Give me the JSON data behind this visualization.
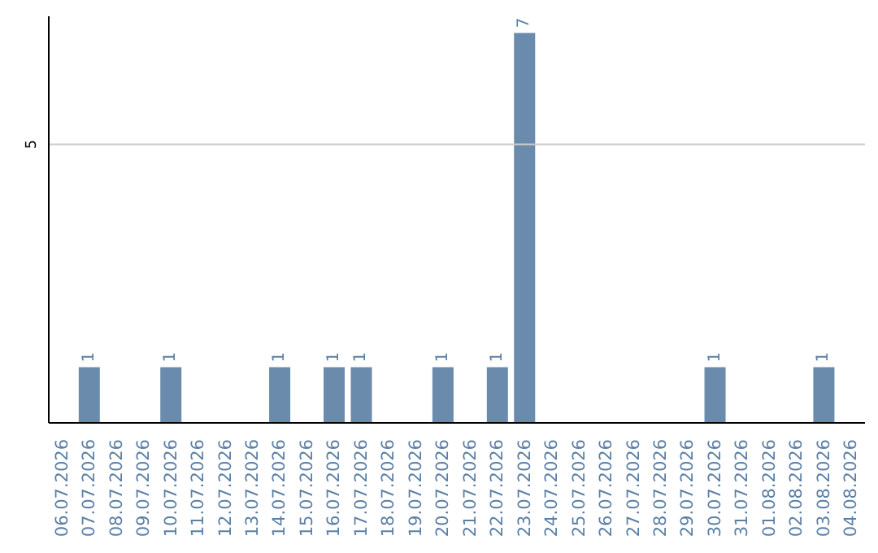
{
  "chart_data": {
    "type": "bar",
    "categories": [
      "06.07.2026",
      "07.07.2026",
      "08.07.2026",
      "09.07.2026",
      "10.07.2026",
      "11.07.2026",
      "12.07.2026",
      "13.07.2026",
      "14.07.2026",
      "15.07.2026",
      "16.07.2026",
      "17.07.2026",
      "18.07.2026",
      "19.07.2026",
      "20.07.2026",
      "21.07.2026",
      "22.07.2026",
      "23.07.2026",
      "24.07.2026",
      "25.07.2026",
      "26.07.2026",
      "27.07.2026",
      "28.07.2026",
      "29.07.2026",
      "30.07.2026",
      "31.07.2026",
      "01.08.2026",
      "02.08.2026",
      "03.08.2026",
      "04.08.2026"
    ],
    "values": [
      0,
      1,
      0,
      0,
      1,
      0,
      0,
      0,
      1,
      0,
      1,
      1,
      0,
      0,
      1,
      0,
      1,
      7,
      0,
      0,
      0,
      0,
      0,
      0,
      1,
      0,
      0,
      0,
      1,
      0
    ],
    "value_labels": [
      null,
      "1",
      null,
      null,
      "1",
      null,
      null,
      null,
      "1",
      null,
      "1",
      "1",
      null,
      null,
      "1",
      null,
      "1",
      "7",
      null,
      null,
      null,
      null,
      null,
      null,
      "1",
      null,
      null,
      null,
      "1",
      null
    ],
    "color": "#6a8bab",
    "ylim": [
      0,
      7.3
    ],
    "yticks": [
      5
    ],
    "grid": "y"
  }
}
